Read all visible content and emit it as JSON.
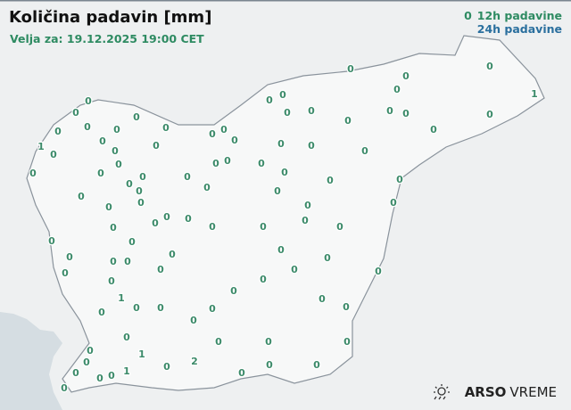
{
  "header": {
    "title": "Količina padavin [mm]",
    "valid_for": "Velja za: 19.12.2025 19:00 CET"
  },
  "legend": {
    "sample_value": "0",
    "label_12h": "12h padavine",
    "label_24h": "24h padavine",
    "color_12h": "#2e8b62",
    "color_24h": "#2a6f9e"
  },
  "logo": {
    "brand": "ARSO",
    "product": "VREME",
    "icon": "sun-rain-icon"
  },
  "stations_12h_mm": [
    0,
    0,
    0,
    0,
    0,
    0,
    1,
    0,
    0,
    0,
    0,
    0,
    0,
    0,
    0,
    0,
    0,
    0,
    0,
    0,
    0,
    0,
    0,
    0,
    1,
    0,
    0,
    0,
    0,
    0,
    0,
    0,
    0,
    0,
    0,
    0,
    0,
    0,
    0,
    0,
    0,
    0,
    0,
    0,
    0,
    0,
    0,
    0,
    0,
    0,
    0,
    0,
    0,
    0,
    0,
    0,
    0,
    0,
    0,
    0,
    0,
    0,
    0,
    0,
    0,
    0,
    0,
    0,
    0,
    0,
    0,
    0,
    0,
    0,
    0,
    1,
    0,
    0,
    0,
    0,
    0,
    0,
    0,
    0,
    1,
    0,
    0,
    0,
    0,
    0,
    0,
    0,
    2,
    0,
    0,
    0,
    1,
    0,
    0,
    0
  ]
}
